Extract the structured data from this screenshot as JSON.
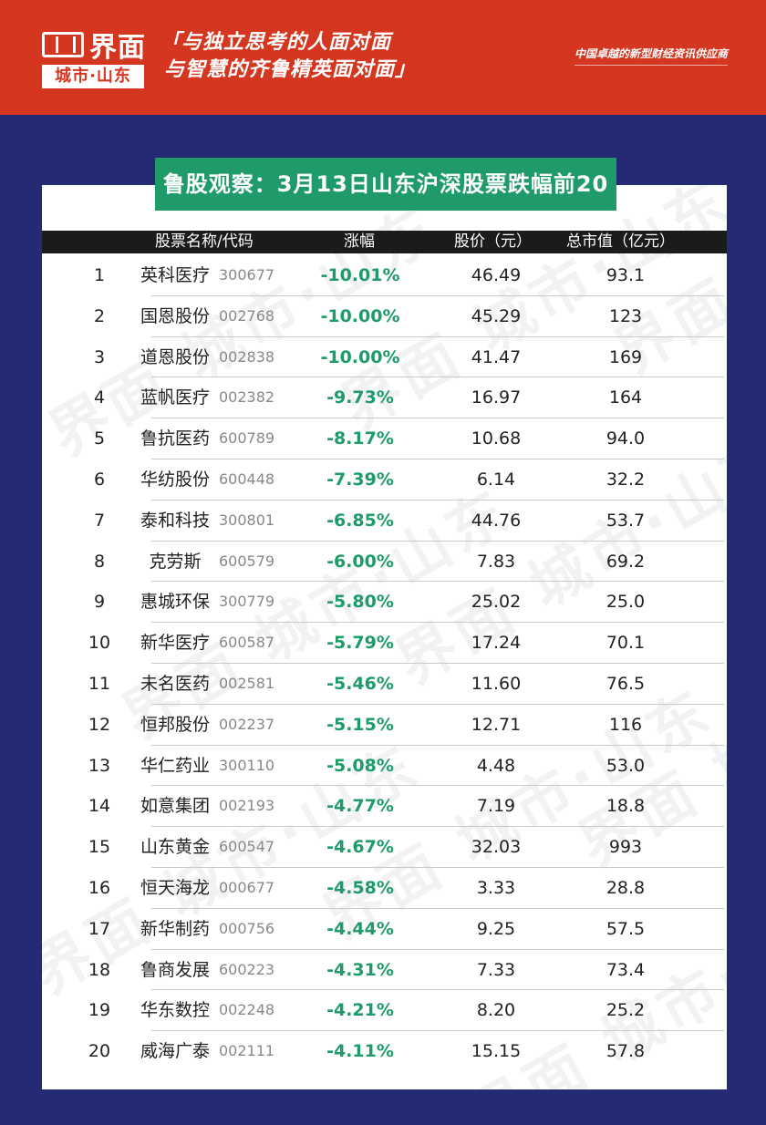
{
  "header": {
    "logo_text": "界面",
    "city_badge": "城市·山东",
    "slogan_line1": "「与独立思考的人面对面",
    "slogan_line2": "与智慧的齐鲁精英面对面」",
    "tagline": "中国卓越的新型财经资讯供应商"
  },
  "watermark_text": "界面 城市·山东",
  "title": "鲁股观察：3月13日山东沪深股票跌幅前20",
  "columns": {
    "name_code": "股票名称/代码",
    "change": "涨幅",
    "price": "股价（元）",
    "market_cap": "总市值（亿元）"
  },
  "rows": [
    {
      "rank": "1",
      "name": "英科医疗",
      "code": "300677",
      "change": "-10.01%",
      "price": "46.49",
      "cap": "93.1"
    },
    {
      "rank": "2",
      "name": "国恩股份",
      "code": "002768",
      "change": "-10.00%",
      "price": "45.29",
      "cap": "123"
    },
    {
      "rank": "3",
      "name": "道恩股份",
      "code": "002838",
      "change": "-10.00%",
      "price": "41.47",
      "cap": "169"
    },
    {
      "rank": "4",
      "name": "蓝帆医疗",
      "code": "002382",
      "change": "-9.73%",
      "price": "16.97",
      "cap": "164"
    },
    {
      "rank": "5",
      "name": "鲁抗医药",
      "code": "600789",
      "change": "-8.17%",
      "price": "10.68",
      "cap": "94.0"
    },
    {
      "rank": "6",
      "name": "华纺股份",
      "code": "600448",
      "change": "-7.39%",
      "price": "6.14",
      "cap": "32.2"
    },
    {
      "rank": "7",
      "name": "泰和科技",
      "code": "300801",
      "change": "-6.85%",
      "price": "44.76",
      "cap": "53.7"
    },
    {
      "rank": "8",
      "name": "克劳斯",
      "code": "600579",
      "change": "-6.00%",
      "price": "7.83",
      "cap": "69.2"
    },
    {
      "rank": "9",
      "name": "惠城环保",
      "code": "300779",
      "change": "-5.80%",
      "price": "25.02",
      "cap": "25.0"
    },
    {
      "rank": "10",
      "name": "新华医疗",
      "code": "600587",
      "change": "-5.79%",
      "price": "17.24",
      "cap": "70.1"
    },
    {
      "rank": "11",
      "name": "未名医药",
      "code": "002581",
      "change": "-5.46%",
      "price": "11.60",
      "cap": "76.5"
    },
    {
      "rank": "12",
      "name": "恒邦股份",
      "code": "002237",
      "change": "-5.15%",
      "price": "12.71",
      "cap": "116"
    },
    {
      "rank": "13",
      "name": "华仁药业",
      "code": "300110",
      "change": "-5.08%",
      "price": "4.48",
      "cap": "53.0"
    },
    {
      "rank": "14",
      "name": "如意集团",
      "code": "002193",
      "change": "-4.77%",
      "price": "7.19",
      "cap": "18.8"
    },
    {
      "rank": "15",
      "name": "山东黄金",
      "code": "600547",
      "change": "-4.67%",
      "price": "32.03",
      "cap": "993"
    },
    {
      "rank": "16",
      "name": "恒天海龙",
      "code": "000677",
      "change": "-4.58%",
      "price": "3.33",
      "cap": "28.8"
    },
    {
      "rank": "17",
      "name": "新华制药",
      "code": "000756",
      "change": "-4.44%",
      "price": "9.25",
      "cap": "57.5"
    },
    {
      "rank": "18",
      "name": "鲁商发展",
      "code": "600223",
      "change": "-4.31%",
      "price": "7.33",
      "cap": "73.4"
    },
    {
      "rank": "19",
      "name": "华东数控",
      "code": "002248",
      "change": "-4.21%",
      "price": "8.20",
      "cap": "25.2"
    },
    {
      "rank": "20",
      "name": "威海广泰",
      "code": "002111",
      "change": "-4.11%",
      "price": "15.15",
      "cap": "57.8"
    }
  ],
  "colors": {
    "background": "#252a74",
    "header": "#d5361f",
    "title_bar": "#1f9b6a",
    "change_text": "#1f9b6a",
    "table_header": "#1b1b1b"
  }
}
